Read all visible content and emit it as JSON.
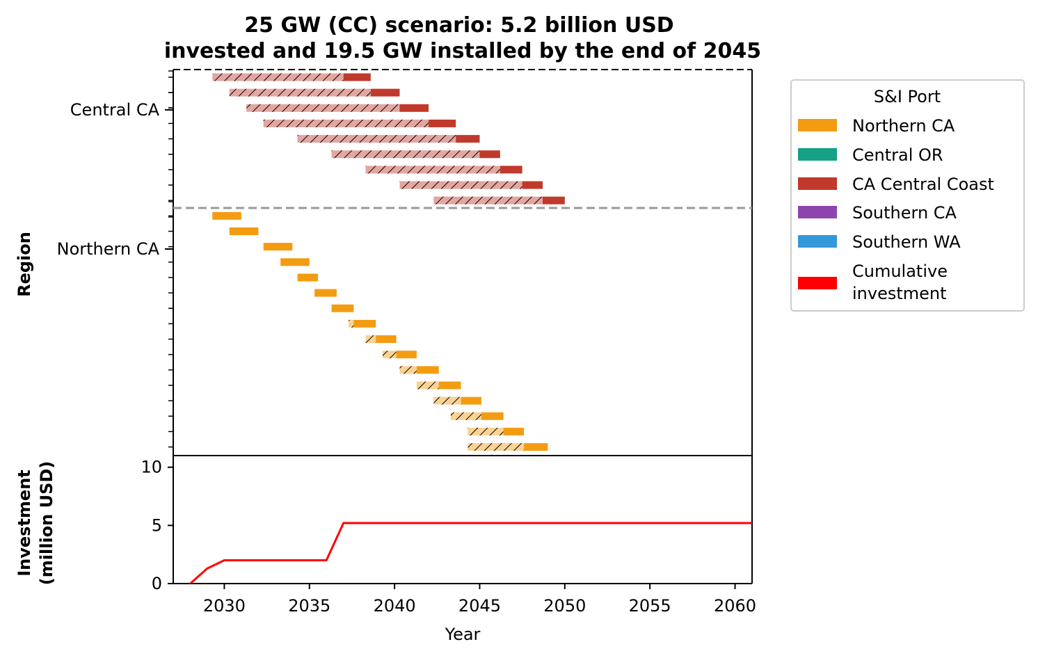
{
  "chart_data": {
    "type": "gantt",
    "title_lines": [
      "25 GW (CC) scenario: 5.2 billion USD",
      "invested and 19.5 GW installed by the end of 2045"
    ],
    "top_panel": {
      "ylabel": "Region",
      "region_labels": [
        "Central CA",
        "Northern CA"
      ],
      "separator": "dashed-gray",
      "bars": [
        {
          "region": "Central CA",
          "port": "CA Central Coast",
          "hatch_start": 2029.3,
          "solid_start": 2037.0,
          "end": 2038.6
        },
        {
          "region": "Central CA",
          "port": "CA Central Coast",
          "hatch_start": 2030.3,
          "solid_start": 2038.6,
          "end": 2040.3
        },
        {
          "region": "Central CA",
          "port": "CA Central Coast",
          "hatch_start": 2031.3,
          "solid_start": 2040.3,
          "end": 2042.0
        },
        {
          "region": "Central CA",
          "port": "CA Central Coast",
          "hatch_start": 2032.3,
          "solid_start": 2042.0,
          "end": 2043.6
        },
        {
          "region": "Central CA",
          "port": "CA Central Coast",
          "hatch_start": 2034.3,
          "solid_start": 2043.6,
          "end": 2045.0
        },
        {
          "region": "Central CA",
          "port": "CA Central Coast",
          "hatch_start": 2036.3,
          "solid_start": 2045.0,
          "end": 2046.2
        },
        {
          "region": "Central CA",
          "port": "CA Central Coast",
          "hatch_start": 2038.3,
          "solid_start": 2046.2,
          "end": 2047.5
        },
        {
          "region": "Central CA",
          "port": "CA Central Coast",
          "hatch_start": 2040.3,
          "solid_start": 2047.5,
          "end": 2048.7
        },
        {
          "region": "Central CA",
          "port": "CA Central Coast",
          "hatch_start": 2042.3,
          "solid_start": 2048.7,
          "end": 2050.0
        },
        {
          "region": "Northern CA",
          "port": "Northern CA",
          "hatch_start": 2029.3,
          "solid_start": 2029.3,
          "end": 2031.0
        },
        {
          "region": "Northern CA",
          "port": "Northern CA",
          "hatch_start": 2030.3,
          "solid_start": 2030.3,
          "end": 2032.0
        },
        {
          "region": "Northern CA",
          "port": "Northern CA",
          "hatch_start": 2032.3,
          "solid_start": 2032.3,
          "end": 2034.0
        },
        {
          "region": "Northern CA",
          "port": "Northern CA",
          "hatch_start": 2033.3,
          "solid_start": 2033.3,
          "end": 2035.0
        },
        {
          "region": "Northern CA",
          "port": "Northern CA",
          "hatch_start": 2034.3,
          "solid_start": 2034.3,
          "end": 2035.5
        },
        {
          "region": "Northern CA",
          "port": "Northern CA",
          "hatch_start": 2035.3,
          "solid_start": 2035.3,
          "end": 2036.6
        },
        {
          "region": "Northern CA",
          "port": "Northern CA",
          "hatch_start": 2036.3,
          "solid_start": 2036.3,
          "end": 2037.6
        },
        {
          "region": "Northern CA",
          "port": "Northern CA",
          "hatch_start": 2037.3,
          "solid_start": 2037.6,
          "end": 2038.9
        },
        {
          "region": "Northern CA",
          "port": "Northern CA",
          "hatch_start": 2038.3,
          "solid_start": 2038.9,
          "end": 2040.1
        },
        {
          "region": "Northern CA",
          "port": "Northern CA",
          "hatch_start": 2039.3,
          "solid_start": 2040.1,
          "end": 2041.3
        },
        {
          "region": "Northern CA",
          "port": "Northern CA",
          "hatch_start": 2040.3,
          "solid_start": 2041.3,
          "end": 2042.6
        },
        {
          "region": "Northern CA",
          "port": "Northern CA",
          "hatch_start": 2041.3,
          "solid_start": 2042.6,
          "end": 2043.9
        },
        {
          "region": "Northern CA",
          "port": "Northern CA",
          "hatch_start": 2042.3,
          "solid_start": 2043.9,
          "end": 2045.1
        },
        {
          "region": "Northern CA",
          "port": "Northern CA",
          "hatch_start": 2043.3,
          "solid_start": 2045.1,
          "end": 2046.4
        },
        {
          "region": "Northern CA",
          "port": "Northern CA",
          "hatch_start": 2044.3,
          "solid_start": 2046.4,
          "end": 2047.6
        },
        {
          "region": "Northern CA",
          "port": "Northern CA",
          "hatch_start": 2044.3,
          "solid_start": 2047.6,
          "end": 2049.0
        }
      ]
    },
    "bottom_panel": {
      "type": "line",
      "xlabel": "Year",
      "ylabel_lines": [
        "Investment",
        "(million USD)"
      ],
      "ylim": [
        0,
        11
      ],
      "yticks": [
        0,
        5,
        10
      ],
      "series": [
        {
          "name": "Cumulative investment",
          "color": "#ff0000",
          "x": [
            2027.0,
            2028.0,
            2029.0,
            2030.0,
            2031.0,
            2032.0,
            2033.0,
            2034.0,
            2035.0,
            2036.0,
            2037.0,
            2040.0,
            2045.0,
            2050.0,
            2055.0,
            2061.0
          ],
          "y": [
            -2.0,
            0.0,
            1.3,
            2.0,
            2.0,
            2.0,
            2.0,
            2.0,
            2.0,
            2.0,
            5.2,
            5.2,
            5.2,
            5.2,
            5.2,
            5.2
          ]
        }
      ]
    },
    "xlim": [
      2027,
      2061
    ],
    "xticks": [
      2030,
      2035,
      2040,
      2045,
      2050,
      2055,
      2060
    ],
    "legend": {
      "title": "S&I Port",
      "placement": "right-outside",
      "entries": [
        {
          "label": "Northern CA",
          "color": "#f39c12"
        },
        {
          "label": "Central OR",
          "color": "#16a085"
        },
        {
          "label": "CA Central Coast",
          "color": "#c0392b"
        },
        {
          "label": "Southern CA",
          "color": "#8e44ad"
        },
        {
          "label": "Southern WA",
          "color": "#3498db"
        },
        {
          "label": "Cumulative investment",
          "label_lines": [
            "Cumulative",
            "investment"
          ],
          "color": "#ff0000"
        }
      ]
    }
  }
}
